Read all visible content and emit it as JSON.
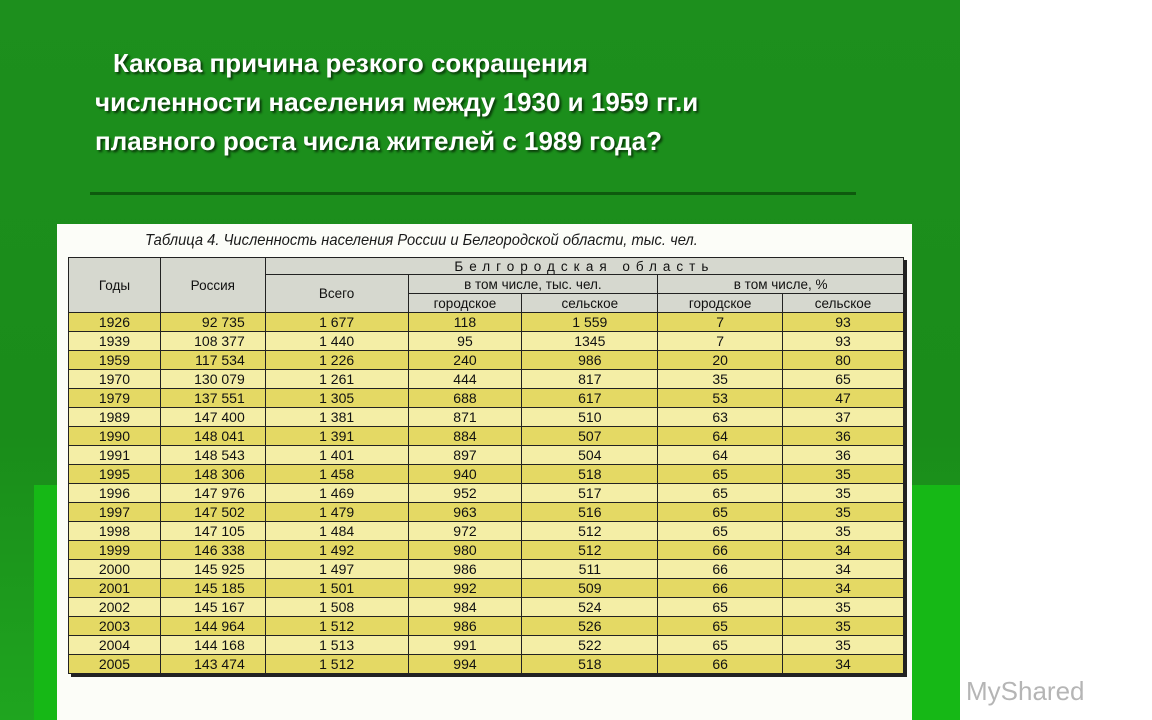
{
  "question": {
    "line1": "Какова причина резкого сокращения",
    "line2": "численности населения между 1930 и 1959 гг.и",
    "line3": "плавного роста числа жителей с 1989 года?"
  },
  "table": {
    "caption": "Таблица 4. Численность населения России и Белгородской области, тыс. чел.",
    "headers": {
      "years": "Годы",
      "russia": "Россия",
      "region": "Белгородская область",
      "total": "Всего",
      "abs_group": "в том числе, тыс. чел.",
      "pct_group": "в том числе, %",
      "urban": "городское",
      "rural": "сельское",
      "urban_pct": "городское",
      "rural_pct": "сельское"
    },
    "rows": [
      [
        "1926",
        "92 735",
        "1 677",
        "118",
        "1 559",
        "7",
        "93"
      ],
      [
        "1939",
        "108 377",
        "1 440",
        "95",
        "1345",
        "7",
        "93"
      ],
      [
        "1959",
        "117 534",
        "1 226",
        "240",
        "986",
        "20",
        "80"
      ],
      [
        "1970",
        "130 079",
        "1 261",
        "444",
        "817",
        "35",
        "65"
      ],
      [
        "1979",
        "137 551",
        "1 305",
        "688",
        "617",
        "53",
        "47"
      ],
      [
        "1989",
        "147 400",
        "1 381",
        "871",
        "510",
        "63",
        "37"
      ],
      [
        "1990",
        "148 041",
        "1 391",
        "884",
        "507",
        "64",
        "36"
      ],
      [
        "1991",
        "148 543",
        "1 401",
        "897",
        "504",
        "64",
        "36"
      ],
      [
        "1995",
        "148 306",
        "1 458",
        "940",
        "518",
        "65",
        "35"
      ],
      [
        "1996",
        "147 976",
        "1 469",
        "952",
        "517",
        "65",
        "35"
      ],
      [
        "1997",
        "147 502",
        "1 479",
        "963",
        "516",
        "65",
        "35"
      ],
      [
        "1998",
        "147 105",
        "1 484",
        "972",
        "512",
        "65",
        "35"
      ],
      [
        "1999",
        "146 338",
        "1 492",
        "980",
        "512",
        "66",
        "34"
      ],
      [
        "2000",
        "145 925",
        "1 497",
        "986",
        "511",
        "66",
        "34"
      ],
      [
        "2001",
        "145 185",
        "1 501",
        "992",
        "509",
        "66",
        "34"
      ],
      [
        "2002",
        "145 167",
        "1 508",
        "984",
        "524",
        "65",
        "35"
      ],
      [
        "2003",
        "144 964",
        "1 512",
        "986",
        "526",
        "65",
        "35"
      ],
      [
        "2004",
        "144 168",
        "1 513",
        "991",
        "522",
        "65",
        "35"
      ],
      [
        "2005",
        "143 474",
        "1 512",
        "994",
        "518",
        "66",
        "34"
      ]
    ]
  },
  "watermark": "MyShared",
  "colors": {
    "slide_green": "#1a8c1a",
    "row_dark": "#e4d964",
    "row_light": "#f4eea6",
    "header": "#d6d8cf"
  }
}
